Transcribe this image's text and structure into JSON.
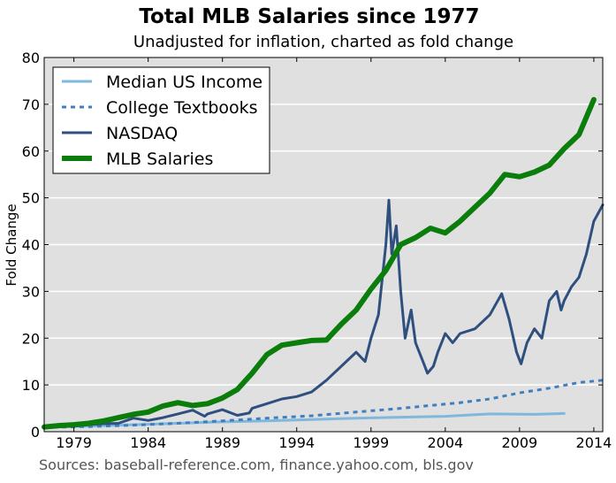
{
  "chart_data": {
    "type": "line",
    "title": "Total MLB Salaries since 1977",
    "subtitle": "Unadjusted for inflation, charted as fold change",
    "ylabel": "Fold Change",
    "xlabel": "",
    "source": "Sources: baseball-reference.com, finance.yahoo.com, bls.gov",
    "xlim": [
      1977,
      2014.6
    ],
    "ylim": [
      0,
      80
    ],
    "x_ticks": [
      1979,
      1984,
      1989,
      1994,
      1999,
      2004,
      2009,
      2014
    ],
    "y_ticks": [
      0,
      10,
      20,
      30,
      40,
      50,
      60,
      70,
      80
    ],
    "grid": "horizontal",
    "legend_position": "top-left",
    "series": [
      {
        "name": "Median US Income",
        "color": "#7fb8dc",
        "style": "solid",
        "points": [
          [
            1977,
            1.0
          ],
          [
            1980,
            1.2
          ],
          [
            1983,
            1.5
          ],
          [
            1986,
            1.8
          ],
          [
            1989,
            2.1
          ],
          [
            1992,
            2.3
          ],
          [
            1995,
            2.6
          ],
          [
            1998,
            2.9
          ],
          [
            2001,
            3.1
          ],
          [
            2004,
            3.3
          ],
          [
            2007,
            3.8
          ],
          [
            2010,
            3.7
          ],
          [
            2012,
            3.9
          ]
        ]
      },
      {
        "name": "College Textbooks",
        "color": "#3f7fbf",
        "style": "dashed",
        "points": [
          [
            1977,
            0.9
          ],
          [
            1980,
            1.1
          ],
          [
            1983,
            1.4
          ],
          [
            1986,
            1.8
          ],
          [
            1989,
            2.3
          ],
          [
            1992,
            2.9
          ],
          [
            1995,
            3.4
          ],
          [
            1998,
            4.2
          ],
          [
            2001,
            5.0
          ],
          [
            2003,
            5.6
          ],
          [
            2005,
            6.2
          ],
          [
            2007,
            7.0
          ],
          [
            2009,
            8.3
          ],
          [
            2011,
            9.3
          ],
          [
            2013,
            10.5
          ],
          [
            2014.6,
            11.0
          ]
        ]
      },
      {
        "name": "NASDAQ",
        "color": "#2f4f7f",
        "style": "solid",
        "points": [
          [
            1977,
            1.0
          ],
          [
            1978,
            1.1
          ],
          [
            1979,
            1.2
          ],
          [
            1980,
            1.5
          ],
          [
            1981,
            1.7
          ],
          [
            1982,
            1.8
          ],
          [
            1983,
            2.9
          ],
          [
            1984,
            2.4
          ],
          [
            1985,
            3.0
          ],
          [
            1986,
            3.8
          ],
          [
            1987,
            4.6
          ],
          [
            1987.8,
            3.3
          ],
          [
            1988,
            3.8
          ],
          [
            1989,
            4.7
          ],
          [
            1990,
            3.5
          ],
          [
            1990.8,
            4.0
          ],
          [
            1991,
            5.0
          ],
          [
            1992,
            6.0
          ],
          [
            1993,
            7.0
          ],
          [
            1994,
            7.5
          ],
          [
            1995,
            8.5
          ],
          [
            1996,
            11.0
          ],
          [
            1997,
            14.0
          ],
          [
            1998,
            17.0
          ],
          [
            1998.6,
            15.0
          ],
          [
            1999,
            20.0
          ],
          [
            1999.5,
            25.0
          ],
          [
            2000.0,
            40.0
          ],
          [
            2000.2,
            49.5
          ],
          [
            2000.4,
            38.0
          ],
          [
            2000.7,
            44.0
          ],
          [
            2001.0,
            30.0
          ],
          [
            2001.3,
            20.0
          ],
          [
            2001.7,
            26.0
          ],
          [
            2002.0,
            19.0
          ],
          [
            2002.5,
            15.0
          ],
          [
            2002.8,
            12.5
          ],
          [
            2003.2,
            14.0
          ],
          [
            2003.5,
            17.0
          ],
          [
            2004.0,
            21.0
          ],
          [
            2004.5,
            19.0
          ],
          [
            2005,
            21.0
          ],
          [
            2006,
            22.0
          ],
          [
            2007,
            25.0
          ],
          [
            2007.8,
            29.5
          ],
          [
            2008.3,
            24.0
          ],
          [
            2008.8,
            17.0
          ],
          [
            2009.1,
            14.5
          ],
          [
            2009.5,
            19.0
          ],
          [
            2010,
            22.0
          ],
          [
            2010.5,
            20.0
          ],
          [
            2011,
            28.0
          ],
          [
            2011.5,
            30.0
          ],
          [
            2011.8,
            26.0
          ],
          [
            2012,
            28.0
          ],
          [
            2012.5,
            31.0
          ],
          [
            2013,
            33.0
          ],
          [
            2013.5,
            38.0
          ],
          [
            2014,
            45.0
          ],
          [
            2014.6,
            48.5
          ]
        ]
      },
      {
        "name": "MLB Salaries",
        "color": "#0a7d0a",
        "style": "solid",
        "points": [
          [
            1977,
            1.0
          ],
          [
            1978,
            1.3
          ],
          [
            1979,
            1.5
          ],
          [
            1980,
            1.8
          ],
          [
            1981,
            2.3
          ],
          [
            1982,
            3.0
          ],
          [
            1983,
            3.7
          ],
          [
            1984,
            4.2
          ],
          [
            1985,
            5.5
          ],
          [
            1986,
            6.2
          ],
          [
            1987,
            5.6
          ],
          [
            1988,
            6.0
          ],
          [
            1989,
            7.2
          ],
          [
            1990,
            9.0
          ],
          [
            1991,
            12.5
          ],
          [
            1992,
            16.5
          ],
          [
            1993,
            18.5
          ],
          [
            1994,
            19.0
          ],
          [
            1995,
            19.5
          ],
          [
            1996,
            19.6
          ],
          [
            1997,
            23.0
          ],
          [
            1998,
            26.0
          ],
          [
            1999,
            30.5
          ],
          [
            2000,
            34.5
          ],
          [
            2001,
            40.0
          ],
          [
            2002,
            41.5
          ],
          [
            2003,
            43.5
          ],
          [
            2004,
            42.5
          ],
          [
            2005,
            45.0
          ],
          [
            2006,
            48.0
          ],
          [
            2007,
            51.0
          ],
          [
            2008,
            55.0
          ],
          [
            2009,
            54.5
          ],
          [
            2010,
            55.5
          ],
          [
            2011,
            57.0
          ],
          [
            2012,
            60.5
          ],
          [
            2013,
            63.5
          ],
          [
            2014,
            71.0
          ]
        ]
      }
    ]
  }
}
